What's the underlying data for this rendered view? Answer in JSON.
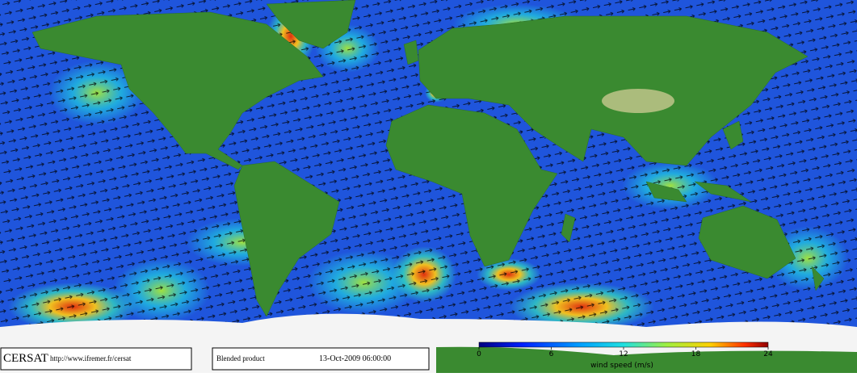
{
  "footer": {
    "logo": "CERSAT",
    "url": "http://www.ifremer.fr/cersat",
    "product": "Blended product",
    "timestamp": "13-Oct-2009 06:00:00"
  },
  "colorbar": {
    "label": "wind speed (m/s)",
    "lim": [
      0,
      24
    ],
    "ticks": [
      0,
      6,
      12,
      18,
      24
    ]
  }
}
